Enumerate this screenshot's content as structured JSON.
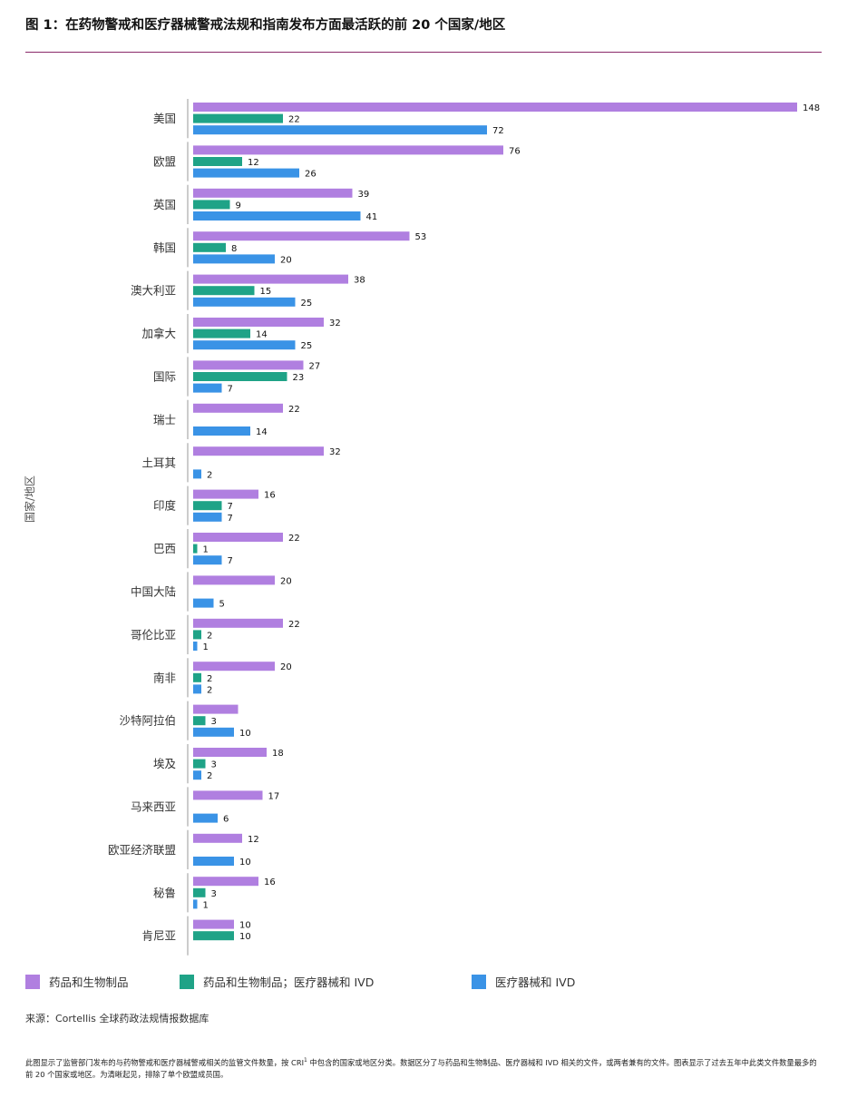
{
  "title": "图 1：在药物警戒和医疗器械警戒法规和指南发布方面最活跃的前 20 个国家/地区",
  "colors": {
    "drugs": "#b07fe0",
    "both": "#1fa387",
    "devices": "#3a93e6",
    "title_rule": "#8a2a6a"
  },
  "chart_data": {
    "type": "bar",
    "orientation": "horizontal",
    "ylabel": "国家/地区",
    "xlim": [
      0,
      148
    ],
    "grid": false,
    "legend_position": "bottom",
    "categories": [
      "美国",
      "欧盟",
      "英国",
      "韩国",
      "澳大利亚",
      "加拿大",
      "国际",
      "瑞士",
      "土耳其",
      "印度",
      "巴西",
      "中国大陆",
      "哥伦比亚",
      "南非",
      "沙特阿拉伯",
      "埃及",
      "马来西亚",
      "欧亚经济联盟",
      "秘鲁",
      "肯尼亚"
    ],
    "series": [
      {
        "name": "药品和生物制品",
        "color": "#b07fe0",
        "values": [
          148,
          76,
          39,
          53,
          38,
          32,
          27,
          22,
          32,
          16,
          22,
          20,
          22,
          20,
          11,
          18,
          17,
          12,
          16,
          10
        ],
        "labels": [
          "148",
          "76",
          "39",
          "53",
          "38",
          "32",
          "27",
          "22",
          "32",
          "16",
          "22",
          "20",
          "22",
          "20",
          "",
          "18",
          "17",
          "12",
          "16",
          "10"
        ]
      },
      {
        "name": "药品和生物制品；医疗器械和 IVD",
        "color": "#1fa387",
        "values": [
          22,
          12,
          9,
          8,
          15,
          14,
          23,
          0,
          0,
          7,
          1,
          0,
          2,
          2,
          3,
          3,
          0,
          0,
          3,
          10
        ],
        "labels": [
          "22",
          "12",
          "9",
          "8",
          "15",
          "14",
          "23",
          "",
          "",
          "7",
          "1",
          "",
          "2",
          "2",
          "3",
          "3",
          "",
          "",
          "3",
          "10"
        ]
      },
      {
        "name": "医疗器械和 IVD",
        "color": "#3a93e6",
        "values": [
          72,
          26,
          41,
          20,
          25,
          25,
          7,
          14,
          2,
          7,
          7,
          5,
          1,
          2,
          10,
          2,
          6,
          10,
          1,
          0
        ],
        "labels": [
          "72",
          "26",
          "41",
          "20",
          "25",
          "25",
          "7",
          "14",
          "2",
          "7",
          "7",
          "5",
          "1",
          "2",
          "10",
          "2",
          "6",
          "10",
          "1",
          ""
        ]
      }
    ]
  },
  "source": "来源：Cortellis 全球药政法规情报数据库",
  "footnote": {
    "part1": "此图显示了监管部门发布的与药物警戒和医疗器械警戒相关的监管文件数量，按 CRI",
    "sup": "1",
    "part2": " 中包含的国家或地区分类。数据区分了与药品和生物制品、医疗器械和 IVD 相关的文件，或两者兼有的文件。图表显示了过去五年中此类文件数量最多的前 20 个国家或地区。为清晰起见，排除了单个欧盟成员国。"
  }
}
